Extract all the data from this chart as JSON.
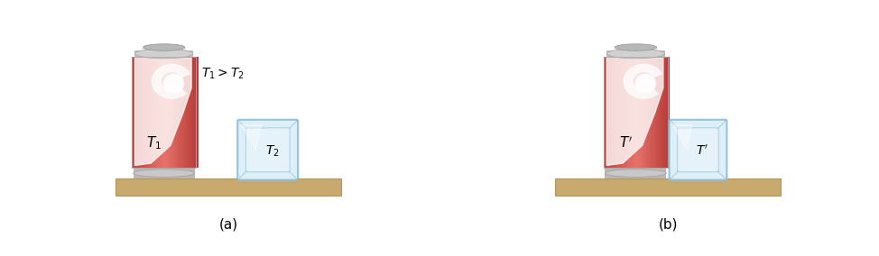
{
  "fig_width": 9.74,
  "fig_height": 2.84,
  "dpi": 100,
  "bg_color": "#ffffff",
  "shelf_color": "#c8a96e",
  "shelf_edge_color": "#b8945a",
  "can_red": "#d9534f",
  "can_red_dark": "#c0392b",
  "can_silver": "#c8c8c8",
  "can_silver_dark": "#a0a0a0",
  "ice_fill": "#daeef8",
  "ice_border": "#8bbdd4",
  "ice_inner": "#c5e0ef",
  "text_color": "#000000",
  "label_a": "(a)",
  "label_b": "(b)",
  "can_label_a": "$T_1$",
  "can_label_b": "$T'$",
  "ice_label_a": "$T_2$",
  "ice_label_b": "$T'$",
  "annotation": "$T_1 > T_2$",
  "label_fontsize": 10,
  "annotation_fontsize": 10,
  "sublabel_fontsize": 11
}
